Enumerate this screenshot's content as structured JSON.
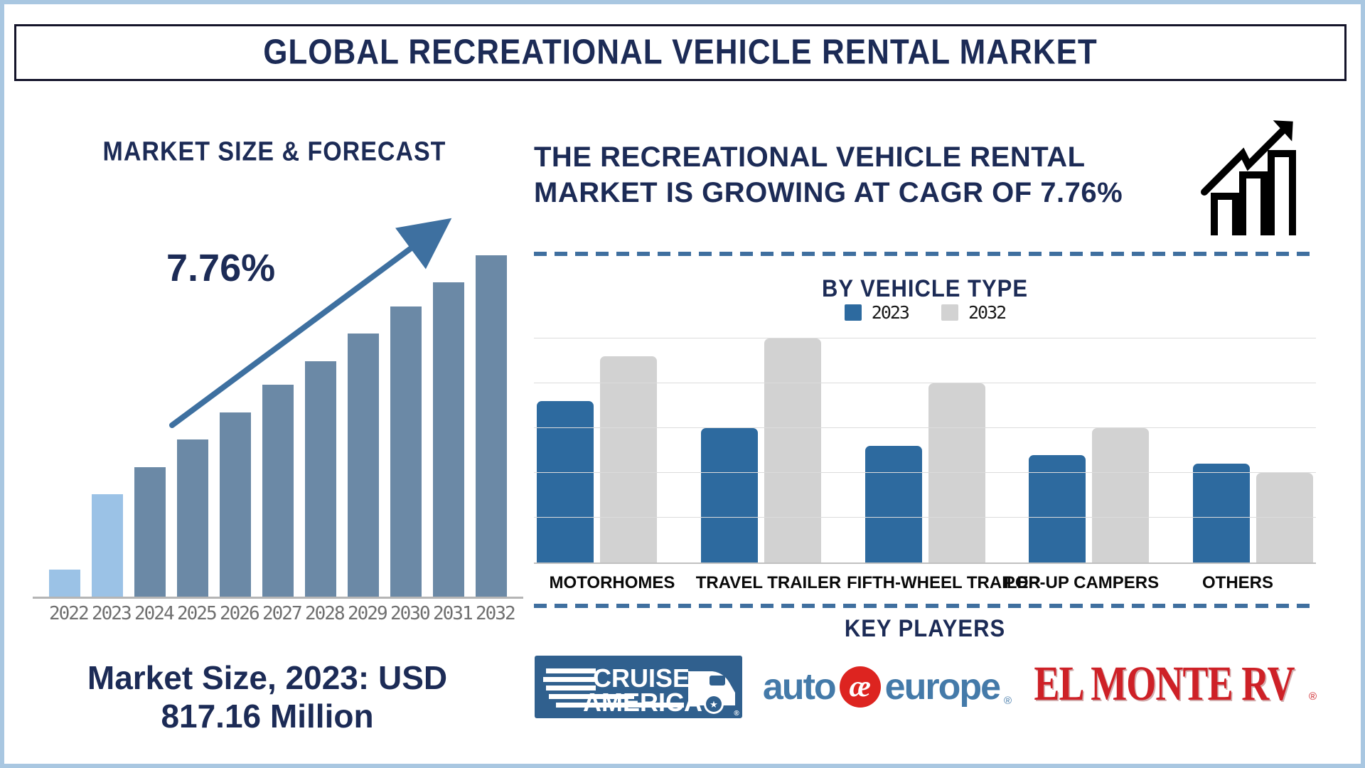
{
  "page": {
    "title": "GLOBAL RECREATIONAL VEHICLE RENTAL MARKET",
    "border_color": "#a9c7e1",
    "accent_navy": "#1c2b56"
  },
  "left_panel": {
    "cagr_label": "7.76%",
    "market_size_line1": "Market Size, 2023: USD",
    "market_size_line2": "817.16 Million"
  },
  "right_panel": {
    "headline_line1": "THE RECREATIONAL VEHICLE RENTAL",
    "headline_line2": "MARKET IS GROWING AT CAGR OF 7.76%",
    "growth_icon": "bar-chart-with-rising-arrow",
    "key_players_title": "KEY PLAYERS",
    "logos": {
      "cruise_america": {
        "line1": "CRUISE",
        "line2": "AMERICA",
        "reg": "®",
        "bg_color": "#30608e"
      },
      "auto_europe": {
        "part1": "auto",
        "monogram": "æ",
        "part2": "europe",
        "reg": "®",
        "blue": "#447aa9",
        "red": "#dd2420"
      },
      "el_monte_rv": {
        "text": "EL MONTE RV",
        "reg": "®",
        "red": "#ce2127"
      }
    }
  },
  "chart_data": [
    {
      "id": "market-size-forecast",
      "type": "bar",
      "title": "MARKET SIZE & FORECAST",
      "categories": [
        "2022",
        "2023",
        "2024",
        "2025",
        "2026",
        "2027",
        "2028",
        "2029",
        "2030",
        "2031",
        "2032"
      ],
      "values_relative": [
        8,
        30,
        38,
        46,
        54,
        62,
        69,
        77,
        85,
        92,
        100
      ],
      "value_note": "no y-axis shown; bar heights are a relative index with 2032 = 100 (estimated from pixels)",
      "highlight_categories": [
        "2022",
        "2023"
      ],
      "bar_color": "#6b89a6",
      "highlight_color": "#9bc2e6",
      "arrow_color": "#3e70a0",
      "annotations": {
        "cagr": "7.76%",
        "market_size_2023": "USD 817.16 Million"
      },
      "grid": false
    },
    {
      "id": "by-vehicle-type",
      "type": "grouped-bar",
      "title": "BY VEHICLE TYPE",
      "categories": [
        "MOTORHOMES",
        "TRAVEL TRAILER",
        "FIFTH-WHEEL TRAILER",
        "POP-UP CAMPERS",
        "OTHERS"
      ],
      "series": [
        {
          "name": "2023",
          "color": "#2d6a9f",
          "values": [
            72,
            60,
            52,
            48,
            44
          ]
        },
        {
          "name": "2032",
          "color": "#d2d2d2",
          "values": [
            92,
            100,
            80,
            60,
            40
          ]
        }
      ],
      "value_note": "no y-axis shown; values are a relative index with Travel Trailer 2032 = 100 (estimated from gridlines)",
      "ylim": [
        0,
        100
      ],
      "grid": true,
      "gridline_count": 5,
      "legend_position": "top"
    }
  ]
}
